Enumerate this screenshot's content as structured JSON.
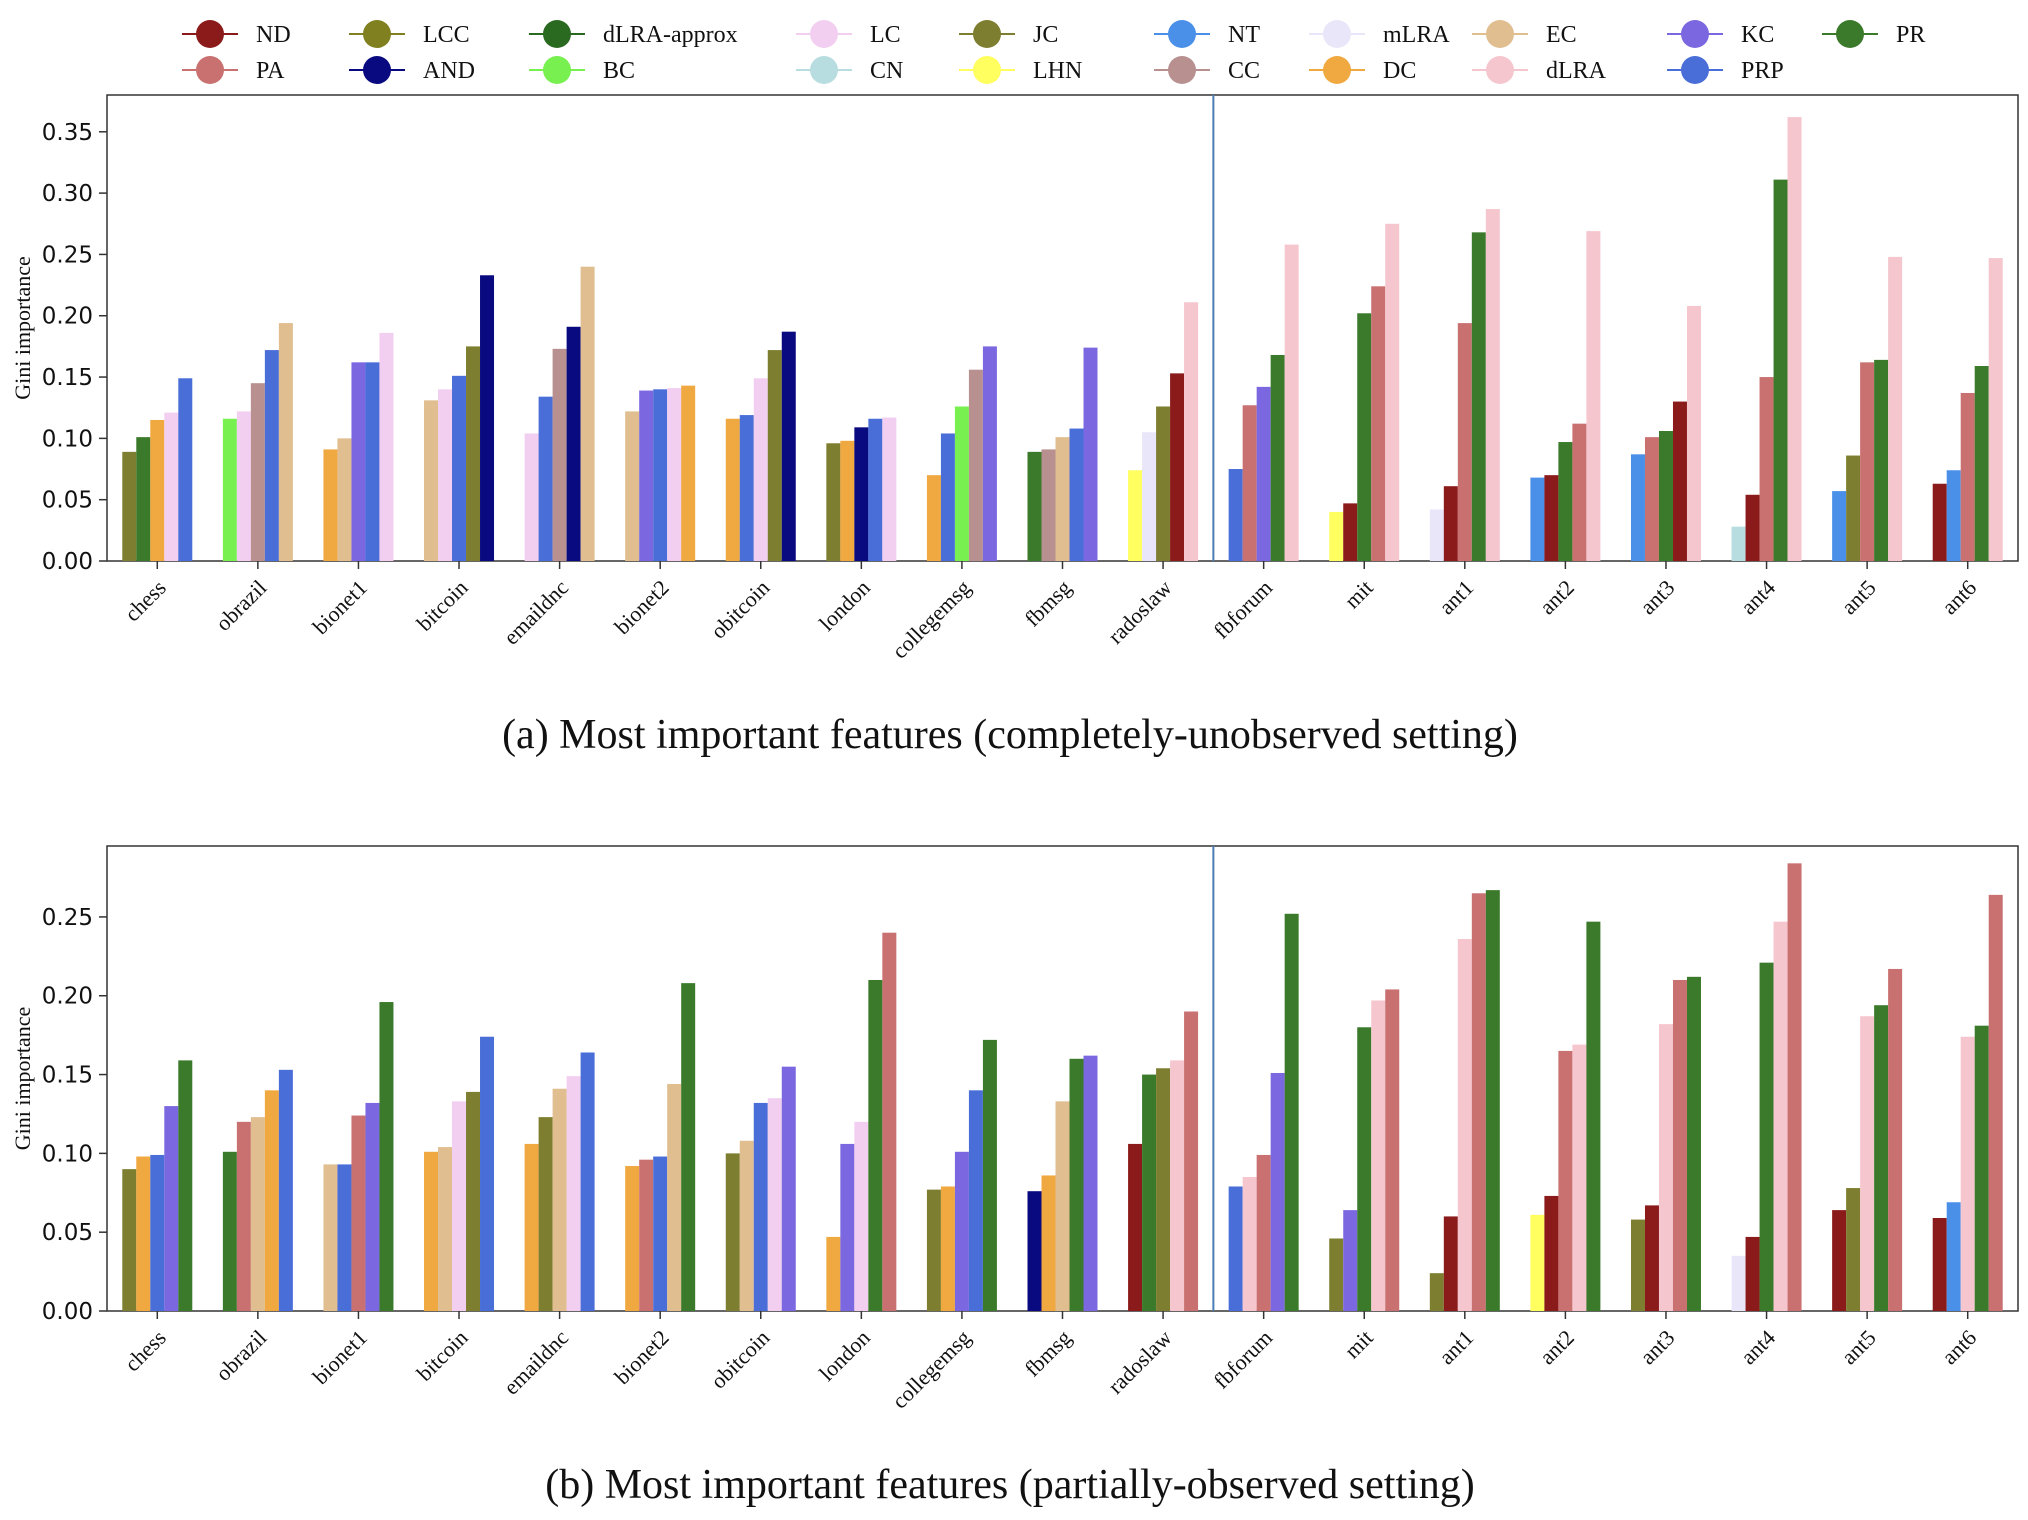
{
  "legend": [
    {
      "key": "ND",
      "label": "ND",
      "color": "#8B1A1A"
    },
    {
      "key": "PA",
      "label": "PA",
      "color": "#C97070"
    },
    {
      "key": "LCC",
      "label": "LCC",
      "color": "#808020"
    },
    {
      "key": "AND",
      "label": "AND",
      "color": "#0A0A80"
    },
    {
      "key": "dLRA-approx",
      "label": "dLRA-approx",
      "color": "#2A6A20"
    },
    {
      "key": "BC",
      "label": "BC",
      "color": "#77F050"
    },
    {
      "key": "LC",
      "label": "LC",
      "color": "#F2CFF0"
    },
    {
      "key": "CN",
      "label": "CN",
      "color": "#B8DDE0"
    },
    {
      "key": "JC",
      "label": "JC",
      "color": "#7E7E30"
    },
    {
      "key": "LHN",
      "label": "LHN",
      "color": "#FFFF60"
    },
    {
      "key": "NT",
      "label": "NT",
      "color": "#4A90E8"
    },
    {
      "key": "CC",
      "label": "CC",
      "color": "#B89090"
    },
    {
      "key": "mLRA",
      "label": "mLRA",
      "color": "#E8E6F8"
    },
    {
      "key": "DC",
      "label": "DC",
      "color": "#F0A840"
    },
    {
      "key": "EC",
      "label": "EC",
      "color": "#E0BE90"
    },
    {
      "key": "dLRA",
      "label": "dLRA",
      "color": "#F6C6CE"
    },
    {
      "key": "KC",
      "label": "KC",
      "color": "#7B68E0"
    },
    {
      "key": "PRP",
      "label": "PRP",
      "color": "#4A6ED8"
    },
    {
      "key": "PR",
      "label": "PR",
      "color": "#3A7A2A"
    }
  ],
  "chart_data": [
    {
      "type": "bar",
      "title": "(a) Most important features (completely-unobserved setting)",
      "ylabel": "Gini importance",
      "ylim": [
        0,
        0.38
      ],
      "yticks": [
        "0.00",
        "0.05",
        "0.10",
        "0.15",
        "0.20",
        "0.25",
        "0.30",
        "0.35"
      ],
      "separator_after_category": "radoslaw",
      "categories": [
        "chess",
        "obrazil",
        "bionet1",
        "bitcoin",
        "emaildnc",
        "bionet2",
        "obitcoin",
        "london",
        "collegemsg",
        "fbmsg",
        "radoslaw",
        "fbforum",
        "mit",
        "ant1",
        "ant2",
        "ant3",
        "ant4",
        "ant5",
        "ant6"
      ],
      "groups": [
        [
          {
            "f": "JC",
            "v": 0.089
          },
          {
            "f": "PR",
            "v": 0.101
          },
          {
            "f": "DC",
            "v": 0.115
          },
          {
            "f": "LC",
            "v": 0.121
          },
          {
            "f": "PRP",
            "v": 0.149
          }
        ],
        [
          {
            "f": "BC",
            "v": 0.116
          },
          {
            "f": "LC",
            "v": 0.122
          },
          {
            "f": "CC",
            "v": 0.145
          },
          {
            "f": "PRP",
            "v": 0.172
          },
          {
            "f": "EC",
            "v": 0.194
          }
        ],
        [
          {
            "f": "DC",
            "v": 0.091
          },
          {
            "f": "EC",
            "v": 0.1
          },
          {
            "f": "KC",
            "v": 0.162
          },
          {
            "f": "PRP",
            "v": 0.162
          },
          {
            "f": "LC",
            "v": 0.186
          }
        ],
        [
          {
            "f": "EC",
            "v": 0.131
          },
          {
            "f": "LC",
            "v": 0.14
          },
          {
            "f": "PRP",
            "v": 0.151
          },
          {
            "f": "JC",
            "v": 0.175
          },
          {
            "f": "AND",
            "v": 0.233
          }
        ],
        [
          {
            "f": "LC",
            "v": 0.104
          },
          {
            "f": "PRP",
            "v": 0.134
          },
          {
            "f": "CC",
            "v": 0.173
          },
          {
            "f": "AND",
            "v": 0.191
          },
          {
            "f": "EC",
            "v": 0.24
          }
        ],
        [
          {
            "f": "EC",
            "v": 0.122
          },
          {
            "f": "KC",
            "v": 0.139
          },
          {
            "f": "PRP",
            "v": 0.14
          },
          {
            "f": "LC",
            "v": 0.141
          },
          {
            "f": "DC",
            "v": 0.143
          }
        ],
        [
          {
            "f": "DC",
            "v": 0.116
          },
          {
            "f": "PRP",
            "v": 0.119
          },
          {
            "f": "LC",
            "v": 0.149
          },
          {
            "f": "JC",
            "v": 0.172
          },
          {
            "f": "AND",
            "v": 0.187
          }
        ],
        [
          {
            "f": "JC",
            "v": 0.096
          },
          {
            "f": "DC",
            "v": 0.098
          },
          {
            "f": "AND",
            "v": 0.109
          },
          {
            "f": "PRP",
            "v": 0.116
          },
          {
            "f": "LC",
            "v": 0.117
          }
        ],
        [
          {
            "f": "DC",
            "v": 0.07
          },
          {
            "f": "PRP",
            "v": 0.104
          },
          {
            "f": "BC",
            "v": 0.126
          },
          {
            "f": "CC",
            "v": 0.156
          },
          {
            "f": "KC",
            "v": 0.175
          }
        ],
        [
          {
            "f": "PR",
            "v": 0.089
          },
          {
            "f": "CC",
            "v": 0.091
          },
          {
            "f": "EC",
            "v": 0.101
          },
          {
            "f": "PRP",
            "v": 0.108
          },
          {
            "f": "KC",
            "v": 0.174
          }
        ],
        [
          {
            "f": "LHN",
            "v": 0.074
          },
          {
            "f": "mLRA",
            "v": 0.105
          },
          {
            "f": "JC",
            "v": 0.126
          },
          {
            "f": "ND",
            "v": 0.153
          },
          {
            "f": "dLRA",
            "v": 0.211
          }
        ],
        [
          {
            "f": "PRP",
            "v": 0.075
          },
          {
            "f": "PA",
            "v": 0.127
          },
          {
            "f": "KC",
            "v": 0.142
          },
          {
            "f": "PR",
            "v": 0.168
          },
          {
            "f": "dLRA",
            "v": 0.258
          }
        ],
        [
          {
            "f": "LHN",
            "v": 0.04
          },
          {
            "f": "ND",
            "v": 0.047
          },
          {
            "f": "PR",
            "v": 0.202
          },
          {
            "f": "PA",
            "v": 0.224
          },
          {
            "f": "dLRA",
            "v": 0.275
          }
        ],
        [
          {
            "f": "mLRA",
            "v": 0.042
          },
          {
            "f": "ND",
            "v": 0.061
          },
          {
            "f": "PA",
            "v": 0.194
          },
          {
            "f": "PR",
            "v": 0.268
          },
          {
            "f": "dLRA",
            "v": 0.287
          }
        ],
        [
          {
            "f": "NT",
            "v": 0.068
          },
          {
            "f": "ND",
            "v": 0.07
          },
          {
            "f": "PR",
            "v": 0.097
          },
          {
            "f": "PA",
            "v": 0.112
          },
          {
            "f": "dLRA",
            "v": 0.269
          }
        ],
        [
          {
            "f": "NT",
            "v": 0.087
          },
          {
            "f": "PA",
            "v": 0.101
          },
          {
            "f": "PR",
            "v": 0.106
          },
          {
            "f": "ND",
            "v": 0.13
          },
          {
            "f": "dLRA",
            "v": 0.208
          }
        ],
        [
          {
            "f": "CN",
            "v": 0.028
          },
          {
            "f": "ND",
            "v": 0.054
          },
          {
            "f": "PA",
            "v": 0.15
          },
          {
            "f": "PR",
            "v": 0.311
          },
          {
            "f": "dLRA",
            "v": 0.362
          }
        ],
        [
          {
            "f": "NT",
            "v": 0.057
          },
          {
            "f": "JC",
            "v": 0.086
          },
          {
            "f": "PA",
            "v": 0.162
          },
          {
            "f": "PR",
            "v": 0.164
          },
          {
            "f": "dLRA",
            "v": 0.248
          }
        ],
        [
          {
            "f": "ND",
            "v": 0.063
          },
          {
            "f": "NT",
            "v": 0.074
          },
          {
            "f": "PA",
            "v": 0.137
          },
          {
            "f": "PR",
            "v": 0.159
          },
          {
            "f": "dLRA",
            "v": 0.247
          }
        ]
      ]
    },
    {
      "type": "bar",
      "title": "(b) Most important features (partially-observed setting)",
      "ylabel": "Gini importance",
      "ylim": [
        0,
        0.295
      ],
      "yticks": [
        "0.00",
        "0.05",
        "0.10",
        "0.15",
        "0.20",
        "0.25"
      ],
      "separator_after_category": "radoslaw",
      "categories": [
        "chess",
        "obrazil",
        "bionet1",
        "bitcoin",
        "emaildnc",
        "bionet2",
        "obitcoin",
        "london",
        "collegemsg",
        "fbmsg",
        "radoslaw",
        "fbforum",
        "mit",
        "ant1",
        "ant2",
        "ant3",
        "ant4",
        "ant5",
        "ant6"
      ],
      "groups": [
        [
          {
            "f": "JC",
            "v": 0.09
          },
          {
            "f": "DC",
            "v": 0.098
          },
          {
            "f": "PRP",
            "v": 0.099
          },
          {
            "f": "KC",
            "v": 0.13
          },
          {
            "f": "PR",
            "v": 0.159
          }
        ],
        [
          {
            "f": "PR",
            "v": 0.101
          },
          {
            "f": "PA",
            "v": 0.12
          },
          {
            "f": "EC",
            "v": 0.123
          },
          {
            "f": "DC",
            "v": 0.14
          },
          {
            "f": "PRP",
            "v": 0.153
          }
        ],
        [
          {
            "f": "EC",
            "v": 0.093
          },
          {
            "f": "PRP",
            "v": 0.093
          },
          {
            "f": "PA",
            "v": 0.124
          },
          {
            "f": "KC",
            "v": 0.132
          },
          {
            "f": "PR",
            "v": 0.196
          }
        ],
        [
          {
            "f": "DC",
            "v": 0.101
          },
          {
            "f": "EC",
            "v": 0.104
          },
          {
            "f": "LC",
            "v": 0.133
          },
          {
            "f": "JC",
            "v": 0.139
          },
          {
            "f": "PRP",
            "v": 0.174
          }
        ],
        [
          {
            "f": "DC",
            "v": 0.106
          },
          {
            "f": "JC",
            "v": 0.123
          },
          {
            "f": "EC",
            "v": 0.141
          },
          {
            "f": "LC",
            "v": 0.149
          },
          {
            "f": "PRP",
            "v": 0.164
          }
        ],
        [
          {
            "f": "DC",
            "v": 0.092
          },
          {
            "f": "PA",
            "v": 0.096
          },
          {
            "f": "PRP",
            "v": 0.098
          },
          {
            "f": "EC",
            "v": 0.144
          },
          {
            "f": "PR",
            "v": 0.208
          }
        ],
        [
          {
            "f": "JC",
            "v": 0.1
          },
          {
            "f": "EC",
            "v": 0.108
          },
          {
            "f": "PRP",
            "v": 0.132
          },
          {
            "f": "LC",
            "v": 0.135
          },
          {
            "f": "KC",
            "v": 0.155
          }
        ],
        [
          {
            "f": "DC",
            "v": 0.047
          },
          {
            "f": "KC",
            "v": 0.106
          },
          {
            "f": "LC",
            "v": 0.12
          },
          {
            "f": "PR",
            "v": 0.21
          },
          {
            "f": "PA",
            "v": 0.24
          }
        ],
        [
          {
            "f": "JC",
            "v": 0.077
          },
          {
            "f": "DC",
            "v": 0.079
          },
          {
            "f": "KC",
            "v": 0.101
          },
          {
            "f": "PRP",
            "v": 0.14
          },
          {
            "f": "PR",
            "v": 0.172
          }
        ],
        [
          {
            "f": "AND",
            "v": 0.076
          },
          {
            "f": "DC",
            "v": 0.086
          },
          {
            "f": "EC",
            "v": 0.133
          },
          {
            "f": "PR",
            "v": 0.16
          },
          {
            "f": "KC",
            "v": 0.162
          }
        ],
        [
          {
            "f": "ND",
            "v": 0.106
          },
          {
            "f": "PR",
            "v": 0.15
          },
          {
            "f": "JC",
            "v": 0.154
          },
          {
            "f": "dLRA",
            "v": 0.159
          },
          {
            "f": "PA",
            "v": 0.19
          }
        ],
        [
          {
            "f": "PRP",
            "v": 0.079
          },
          {
            "f": "dLRA",
            "v": 0.085
          },
          {
            "f": "PA",
            "v": 0.099
          },
          {
            "f": "KC",
            "v": 0.151
          },
          {
            "f": "PR",
            "v": 0.252
          }
        ],
        [
          {
            "f": "JC",
            "v": 0.046
          },
          {
            "f": "KC",
            "v": 0.064
          },
          {
            "f": "PR",
            "v": 0.18
          },
          {
            "f": "dLRA",
            "v": 0.197
          },
          {
            "f": "PA",
            "v": 0.204
          }
        ],
        [
          {
            "f": "JC",
            "v": 0.024
          },
          {
            "f": "ND",
            "v": 0.06
          },
          {
            "f": "dLRA",
            "v": 0.236
          },
          {
            "f": "PA",
            "v": 0.265
          },
          {
            "f": "PR",
            "v": 0.267
          }
        ],
        [
          {
            "f": "LHN",
            "v": 0.061
          },
          {
            "f": "ND",
            "v": 0.073
          },
          {
            "f": "PA",
            "v": 0.165
          },
          {
            "f": "dLRA",
            "v": 0.169
          },
          {
            "f": "PR",
            "v": 0.247
          }
        ],
        [
          {
            "f": "JC",
            "v": 0.058
          },
          {
            "f": "ND",
            "v": 0.067
          },
          {
            "f": "dLRA",
            "v": 0.182
          },
          {
            "f": "PA",
            "v": 0.21
          },
          {
            "f": "PR",
            "v": 0.212
          }
        ],
        [
          {
            "f": "mLRA",
            "v": 0.035
          },
          {
            "f": "ND",
            "v": 0.047
          },
          {
            "f": "PR",
            "v": 0.221
          },
          {
            "f": "dLRA",
            "v": 0.247
          },
          {
            "f": "PA",
            "v": 0.284
          }
        ],
        [
          {
            "f": "ND",
            "v": 0.064
          },
          {
            "f": "JC",
            "v": 0.078
          },
          {
            "f": "dLRA",
            "v": 0.187
          },
          {
            "f": "PR",
            "v": 0.194
          },
          {
            "f": "PA",
            "v": 0.217
          }
        ],
        [
          {
            "f": "ND",
            "v": 0.059
          },
          {
            "f": "NT",
            "v": 0.069
          },
          {
            "f": "dLRA",
            "v": 0.174
          },
          {
            "f": "PR",
            "v": 0.181
          },
          {
            "f": "PA",
            "v": 0.264
          }
        ]
      ]
    }
  ]
}
